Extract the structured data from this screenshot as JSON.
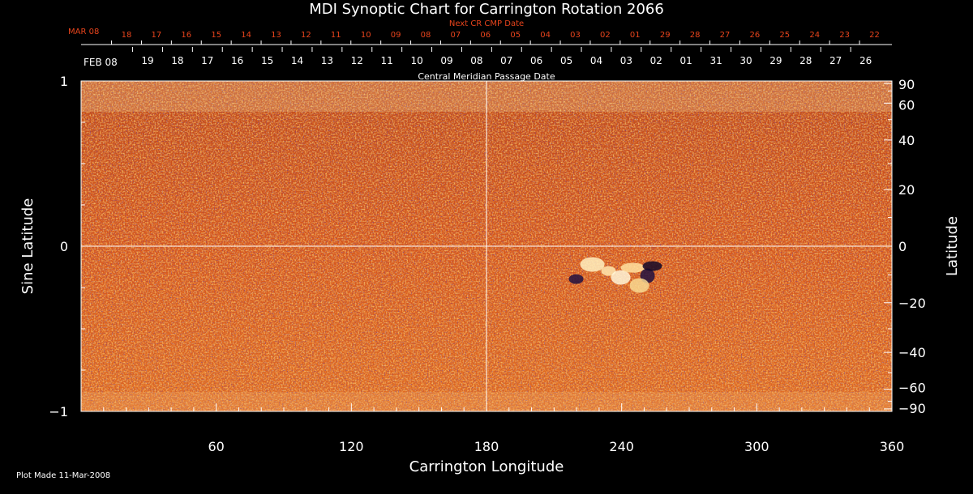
{
  "chart_data": {
    "type": "heatmap",
    "title": "MDI Synoptic Chart for Carrington Rotation 2066",
    "xlabel": "Carrington Longitude",
    "ylabel_left": "Sine Latitude",
    "ylabel_right": "Latitude",
    "xlim": [
      0,
      360
    ],
    "ylim": [
      -1,
      1
    ],
    "x_ticks": [
      60,
      120,
      180,
      240,
      300,
      360
    ],
    "y_left_ticks": [
      {
        "value": 1,
        "label": "1"
      },
      {
        "value": 0,
        "label": "0"
      },
      {
        "value": -1,
        "label": "−1"
      }
    ],
    "y_right_ticks": [
      90,
      60,
      40,
      20,
      0,
      -20,
      -40,
      -60,
      -90
    ],
    "y_right_tick_labels": [
      "90",
      "60",
      "40",
      "20",
      "0",
      "−20",
      "−40",
      "−60",
      "−90"
    ],
    "crosshair": {
      "longitude": 180,
      "sine_latitude": 0
    },
    "next_cr_label": "Next CR CMP Date",
    "next_cr_month": "MAR 08",
    "next_cr_dates": [
      "18",
      "17",
      "16",
      "15",
      "14",
      "13",
      "12",
      "11",
      "10",
      "09",
      "08",
      "07",
      "06",
      "05",
      "04",
      "03",
      "02",
      "01",
      "29",
      "28",
      "27",
      "26",
      "25",
      "24",
      "23",
      "22"
    ],
    "cmp_label": "Central Meridian Passage Date",
    "cmp_month": "FEB 08",
    "cmp_dates": [
      "19",
      "18",
      "17",
      "16",
      "15",
      "14",
      "13",
      "12",
      "11",
      "10",
      "09",
      "08",
      "07",
      "06",
      "05",
      "04",
      "03",
      "02",
      "01",
      "31",
      "30",
      "29",
      "28",
      "27",
      "26"
    ],
    "colormap": [
      "#000000",
      "#3a1a6a",
      "#a0250c",
      "#e0531a",
      "#f08a30",
      "#fff3c8"
    ],
    "features": [
      {
        "name": "active region",
        "longitude": 245,
        "sine_latitude": -0.15
      }
    ]
  },
  "footer": {
    "plot_made": "Plot Made 11-Mar-2008"
  }
}
